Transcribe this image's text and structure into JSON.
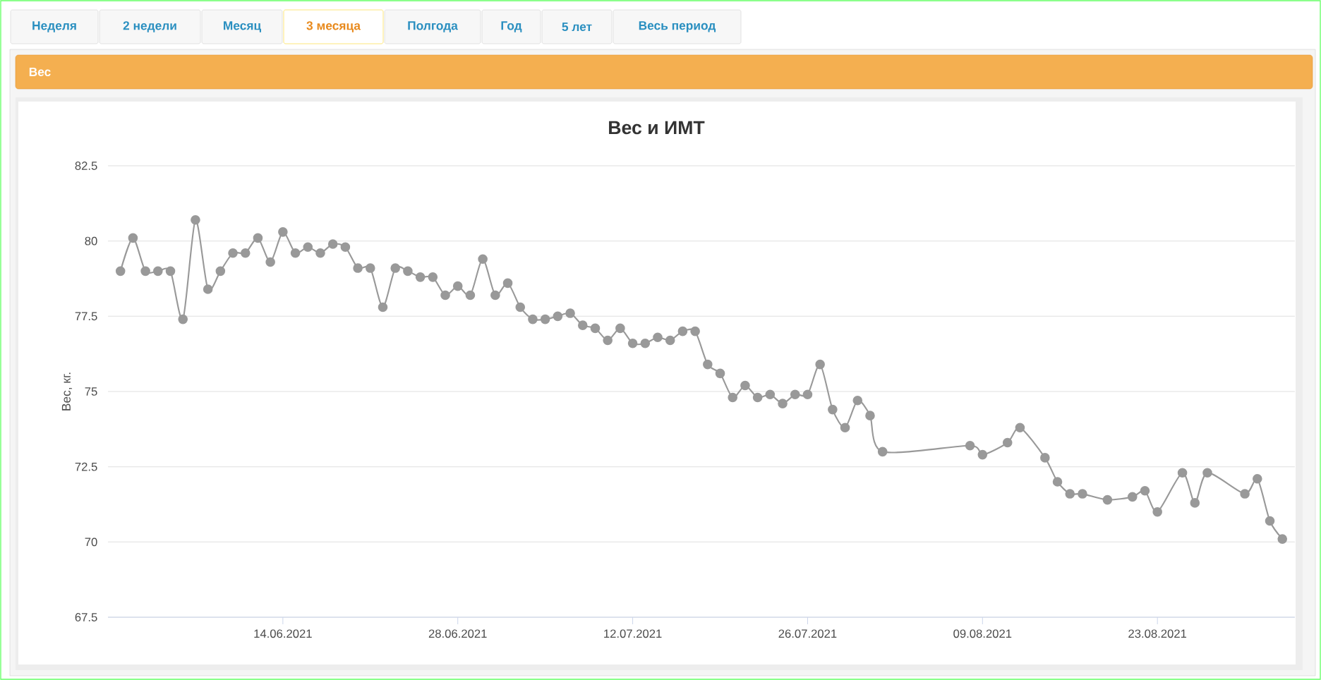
{
  "chart_data": {
    "type": "line",
    "title": "Вес и ИМТ",
    "ylabel": "Вес, кг.",
    "annotations": [
      "Неделя",
      "2 недели",
      "Месяц",
      "3 месяца",
      "Полгода",
      "Год",
      "5 лет",
      "Весь период",
      "Вес"
    ],
    "x": [
      "2021-06-01",
      "2021-06-02",
      "2021-06-03",
      "2021-06-04",
      "2021-06-05",
      "2021-06-06",
      "2021-06-07",
      "2021-06-08",
      "2021-06-09",
      "2021-06-10",
      "2021-06-11",
      "2021-06-12",
      "2021-06-13",
      "2021-06-14",
      "2021-06-15",
      "2021-06-16",
      "2021-06-17",
      "2021-06-18",
      "2021-06-19",
      "2021-06-20",
      "2021-06-21",
      "2021-06-22",
      "2021-06-23",
      "2021-06-24",
      "2021-06-25",
      "2021-06-26",
      "2021-06-27",
      "2021-06-28",
      "2021-06-29",
      "2021-06-30",
      "2021-07-01",
      "2021-07-02",
      "2021-07-03",
      "2021-07-04",
      "2021-07-05",
      "2021-07-06",
      "2021-07-07",
      "2021-07-08",
      "2021-07-09",
      "2021-07-10",
      "2021-07-11",
      "2021-07-12",
      "2021-07-13",
      "2021-07-14",
      "2021-07-15",
      "2021-07-16",
      "2021-07-17",
      "2021-07-18",
      "2021-07-19",
      "2021-07-20",
      "2021-07-21",
      "2021-07-22",
      "2021-07-23",
      "2021-07-24",
      "2021-07-25",
      "2021-07-26",
      "2021-07-27",
      "2021-07-28",
      "2021-07-29",
      "2021-07-30",
      "2021-07-31",
      "2021-08-01",
      "2021-08-08",
      "2021-08-09",
      "2021-08-11",
      "2021-08-12",
      "2021-08-14",
      "2021-08-15",
      "2021-08-16",
      "2021-08-17",
      "2021-08-19",
      "2021-08-21",
      "2021-08-22",
      "2021-08-23",
      "2021-08-25",
      "2021-08-26",
      "2021-08-27",
      "2021-08-30",
      "2021-08-31",
      "2021-09-01",
      "2021-09-02"
    ],
    "values": [
      79.0,
      80.1,
      79.0,
      79.0,
      79.0,
      77.4,
      80.7,
      78.4,
      79.0,
      79.6,
      79.6,
      80.1,
      79.3,
      80.3,
      79.6,
      79.8,
      79.6,
      79.9,
      79.8,
      79.1,
      79.1,
      77.8,
      79.1,
      79.0,
      78.8,
      78.8,
      78.2,
      78.5,
      78.2,
      79.4,
      78.2,
      78.6,
      77.8,
      77.4,
      77.4,
      77.5,
      77.6,
      77.2,
      77.1,
      76.7,
      77.1,
      76.6,
      76.6,
      76.8,
      76.7,
      77.0,
      77.0,
      75.9,
      75.6,
      74.8,
      75.2,
      74.8,
      74.9,
      74.6,
      74.9,
      74.9,
      75.9,
      74.4,
      73.8,
      74.7,
      74.2,
      73.0,
      73.2,
      72.9,
      73.3,
      73.8,
      72.8,
      72.0,
      71.6,
      71.6,
      71.4,
      71.5,
      71.7,
      71.0,
      72.3,
      71.3,
      72.3,
      71.6,
      72.1,
      70.7,
      70.1
    ],
    "color": "#999999",
    "marker": "circle",
    "grid": "y",
    "xlim": [
      "2021-05-31",
      "2021-09-03"
    ],
    "xticks": [
      {
        "value": "2021-06-14",
        "label": "14.06.2021"
      },
      {
        "value": "2021-06-28",
        "label": "28.06.2021"
      },
      {
        "value": "2021-07-12",
        "label": "12.07.2021"
      },
      {
        "value": "2021-07-26",
        "label": "26.07.2021"
      },
      {
        "value": "2021-08-09",
        "label": "09.08.2021"
      },
      {
        "value": "2021-08-23",
        "label": "23.08.2021"
      }
    ],
    "ylim": [
      67.5,
      82.5
    ],
    "yticks": [
      67.5,
      70,
      72.5,
      75,
      77.5,
      80,
      82.5
    ]
  }
}
